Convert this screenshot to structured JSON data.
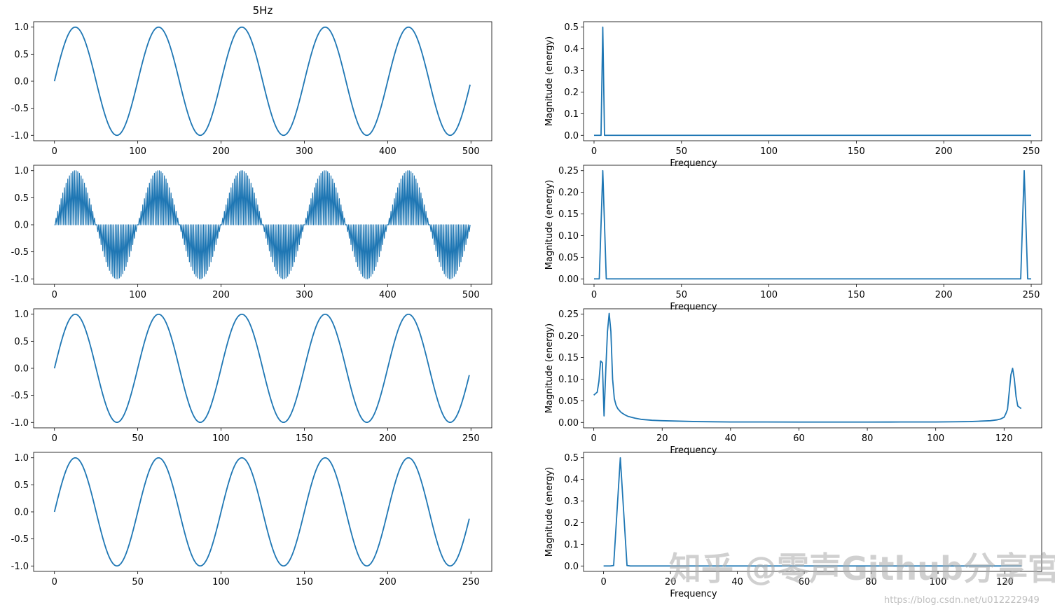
{
  "title": "5Hz",
  "colors": {
    "line": "#1f77b4",
    "axis": "#000000",
    "background": "#ffffff"
  },
  "watermark": {
    "text": "知乎 @零声Github分享官",
    "url": "https://blog.csdn.net/u012222949"
  },
  "chart_data": [
    {
      "id": "time-5hz-500",
      "type": "line",
      "title": "5Hz",
      "signal": {
        "kind": "sine",
        "cycles_per_unit": 0.01,
        "n": 500
      },
      "xlim": [
        -25,
        525
      ],
      "ylim": [
        -1.1,
        1.1
      ],
      "xticks": [
        0,
        100,
        200,
        300,
        400,
        500
      ],
      "yticks": [
        -1.0,
        -0.5,
        0.0,
        0.5,
        1.0
      ],
      "xlabel": "",
      "ylabel": ""
    },
    {
      "id": "fft-5hz-500",
      "type": "line",
      "x": [
        0,
        1,
        2,
        3,
        4,
        5,
        6,
        7,
        8,
        250
      ],
      "y": [
        0,
        0,
        0,
        0,
        0,
        0.5,
        0,
        0,
        0,
        0
      ],
      "xlim": [
        -6,
        256
      ],
      "ylim": [
        -0.025,
        0.525
      ],
      "xticks": [
        0,
        50,
        100,
        150,
        200,
        250
      ],
      "yticks": [
        0.0,
        0.1,
        0.2,
        0.3,
        0.4,
        0.5
      ],
      "xlabel": "Frequency",
      "ylabel": "Magnitude (energy)"
    },
    {
      "id": "time-upsampled",
      "type": "line",
      "signal": {
        "kind": "zero-stuffed-sine",
        "cycles_per_unit": 0.01,
        "n": 500
      },
      "xlim": [
        -25,
        525
      ],
      "ylim": [
        -1.1,
        1.1
      ],
      "xticks": [
        0,
        100,
        200,
        300,
        400,
        500
      ],
      "yticks": [
        -1.0,
        -0.5,
        0.0,
        0.5,
        1.0
      ],
      "xlabel": "",
      "ylabel": ""
    },
    {
      "id": "fft-upsampled",
      "type": "line",
      "x": [
        0,
        2,
        3,
        4,
        5,
        6,
        7,
        8,
        243,
        244,
        245,
        246,
        247,
        248,
        250
      ],
      "y": [
        0,
        0,
        0,
        0.125,
        0.25,
        0.125,
        0,
        0,
        0,
        0,
        0.125,
        0.25,
        0.125,
        0,
        0
      ],
      "xlim": [
        -6,
        256
      ],
      "ylim": [
        -0.0125,
        0.2625
      ],
      "xticks": [
        0,
        50,
        100,
        150,
        200,
        250
      ],
      "yticks": [
        0.0,
        0.05,
        0.1,
        0.15,
        0.2,
        0.25
      ],
      "xlabel": "Frequency",
      "ylabel": "Magnitude (energy)"
    },
    {
      "id": "time-decimated-a",
      "type": "line",
      "signal": {
        "kind": "sine",
        "cycles_per_unit": 0.02,
        "n": 250
      },
      "xlim": [
        -12.5,
        262.5
      ],
      "ylim": [
        -1.1,
        1.1
      ],
      "xticks": [
        0,
        50,
        100,
        150,
        200,
        250
      ],
      "yticks": [
        -1.0,
        -0.5,
        0.0,
        0.5,
        1.0
      ],
      "xlabel": "",
      "ylabel": ""
    },
    {
      "id": "fft-decimated-a",
      "type": "line",
      "x": [
        0,
        1,
        1.5,
        2,
        2.5,
        3,
        3.5,
        4,
        4.5,
        5,
        5.5,
        6,
        6.5,
        7,
        8,
        9,
        10,
        12,
        14,
        17,
        20,
        25,
        30,
        40,
        50,
        60,
        70,
        80,
        90,
        100,
        105,
        110,
        113,
        116,
        118,
        119,
        120,
        120.5,
        121,
        121.5,
        122,
        122.5,
        123,
        123.5,
        124,
        125
      ],
      "y": [
        0.063,
        0.07,
        0.095,
        0.142,
        0.138,
        0.015,
        0.12,
        0.21,
        0.252,
        0.21,
        0.1,
        0.055,
        0.04,
        0.032,
        0.023,
        0.018,
        0.014,
        0.01,
        0.007,
        0.005,
        0.004,
        0.003,
        0.002,
        0.001,
        0.001,
        0.0008,
        0.0008,
        0.0008,
        0.001,
        0.001,
        0.0015,
        0.002,
        0.003,
        0.004,
        0.006,
        0.008,
        0.012,
        0.02,
        0.03,
        0.07,
        0.11,
        0.125,
        0.1,
        0.06,
        0.038,
        0.032
      ],
      "xlim": [
        -3,
        131
      ],
      "ylim": [
        -0.0125,
        0.2625
      ],
      "xticks": [
        0,
        20,
        40,
        60,
        80,
        100,
        120
      ],
      "yticks": [
        0.0,
        0.05,
        0.1,
        0.15,
        0.2,
        0.25
      ],
      "xlabel": "Frequency",
      "ylabel": "Magnitude (energy)"
    },
    {
      "id": "time-decimated-b",
      "type": "line",
      "signal": {
        "kind": "sine",
        "cycles_per_unit": 0.02,
        "n": 250
      },
      "xlim": [
        -12.5,
        262.5
      ],
      "ylim": [
        -1.1,
        1.1
      ],
      "xticks": [
        0,
        50,
        100,
        150,
        200,
        250
      ],
      "yticks": [
        -1.0,
        -0.5,
        0.0,
        0.5,
        1.0
      ],
      "xlabel": "",
      "ylabel": ""
    },
    {
      "id": "fft-decimated-b",
      "type": "line",
      "x": [
        0,
        1,
        2,
        3,
        4,
        5,
        6,
        7,
        8,
        125
      ],
      "y": [
        0,
        0,
        0,
        0.002,
        0.25,
        0.5,
        0.25,
        0.002,
        0,
        0
      ],
      "xlim": [
        -6,
        131
      ],
      "ylim": [
        -0.025,
        0.525
      ],
      "xticks": [
        0,
        20,
        40,
        60,
        80,
        100,
        120
      ],
      "yticks": [
        0.0,
        0.1,
        0.2,
        0.3,
        0.4,
        0.5
      ],
      "xlabel": "Frequency",
      "ylabel": "Magnitude (energy)"
    }
  ]
}
